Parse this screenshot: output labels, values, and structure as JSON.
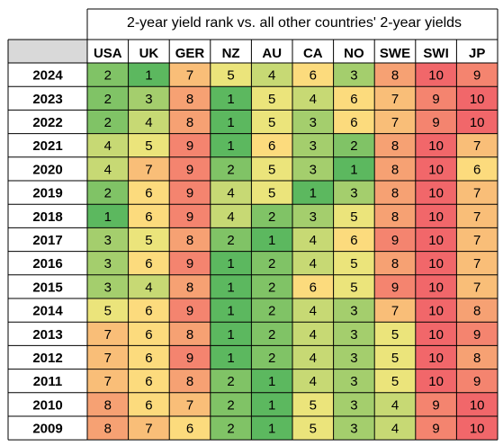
{
  "chart_data": {
    "type": "heatmap",
    "title": "2-year yield rank vs. all other countries' 2-year yields",
    "columns": [
      "USA",
      "UK",
      "GER",
      "NZ",
      "AU",
      "CA",
      "NO",
      "SWE",
      "SWI",
      "JP"
    ],
    "rows": [
      {
        "year": "2024",
        "values": [
          2,
          1,
          7,
          5,
          4,
          6,
          3,
          8,
          10,
          9
        ]
      },
      {
        "year": "2023",
        "values": [
          2,
          3,
          8,
          1,
          5,
          4,
          6,
          7,
          9,
          10
        ]
      },
      {
        "year": "2022",
        "values": [
          2,
          4,
          8,
          1,
          5,
          3,
          6,
          7,
          9,
          10
        ]
      },
      {
        "year": "2021",
        "values": [
          4,
          5,
          9,
          1,
          6,
          3,
          2,
          8,
          10,
          7
        ]
      },
      {
        "year": "2020",
        "values": [
          4,
          7,
          9,
          2,
          5,
          3,
          1,
          8,
          10,
          6
        ]
      },
      {
        "year": "2019",
        "values": [
          2,
          6,
          9,
          4,
          5,
          1,
          3,
          8,
          10,
          7
        ]
      },
      {
        "year": "2018",
        "values": [
          1,
          6,
          9,
          4,
          2,
          3,
          5,
          8,
          10,
          7
        ]
      },
      {
        "year": "2017",
        "values": [
          3,
          5,
          8,
          2,
          1,
          4,
          6,
          9,
          10,
          7
        ]
      },
      {
        "year": "2016",
        "values": [
          3,
          6,
          9,
          1,
          2,
          4,
          5,
          8,
          10,
          7
        ]
      },
      {
        "year": "2015",
        "values": [
          3,
          4,
          8,
          1,
          2,
          6,
          5,
          9,
          10,
          7
        ]
      },
      {
        "year": "2014",
        "values": [
          5,
          6,
          9,
          1,
          2,
          4,
          3,
          7,
          10,
          8
        ]
      },
      {
        "year": "2013",
        "values": [
          7,
          6,
          8,
          1,
          2,
          4,
          3,
          5,
          10,
          9
        ]
      },
      {
        "year": "2012",
        "values": [
          7,
          6,
          9,
          1,
          2,
          4,
          3,
          5,
          10,
          8
        ]
      },
      {
        "year": "2011",
        "values": [
          7,
          6,
          8,
          2,
          1,
          4,
          3,
          5,
          10,
          9
        ]
      },
      {
        "year": "2010",
        "values": [
          8,
          6,
          7,
          2,
          1,
          5,
          3,
          4,
          9,
          10
        ]
      },
      {
        "year": "2009",
        "values": [
          8,
          7,
          6,
          2,
          1,
          5,
          3,
          4,
          9,
          10
        ]
      }
    ],
    "value_range": [
      1,
      10
    ],
    "color_scale": {
      "low": "#5cb85f",
      "mid": "#fde97f",
      "high": "#f1676a"
    },
    "grid": true,
    "legend": "none"
  }
}
